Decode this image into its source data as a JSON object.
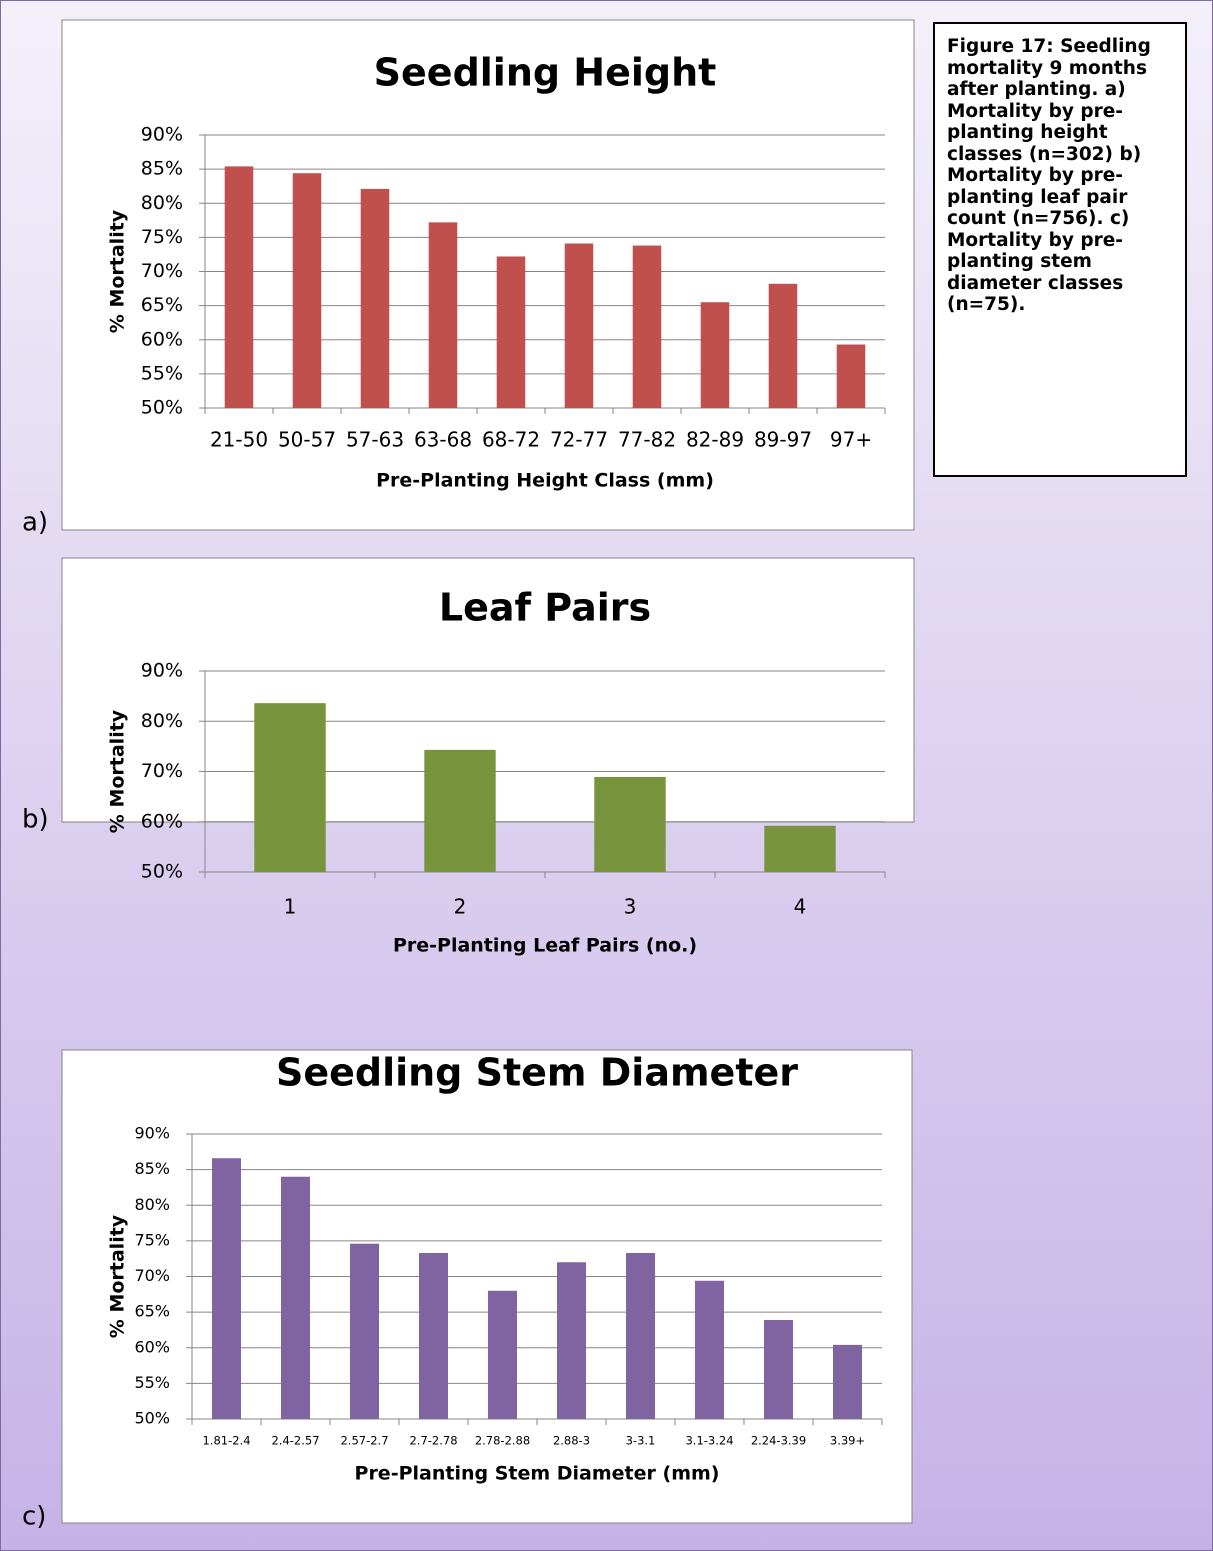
{
  "caption": "Figure 17: Seedling mortality 9 months after planting. a) Mortality by pre-planting height classes (n=302) b) Mortality by pre-planting leaf pair count (n=756). c) Mortality by pre-planting stem diameter classes (n=75).",
  "chart_data": [
    {
      "type": "bar",
      "panel": "a)",
      "title": "Seedling Height",
      "x_label": "Pre-Planting Height Class (mm)",
      "y_label": "% Mortality",
      "categories": [
        "21-50",
        "50-57",
        "57-63",
        "63-68",
        "68-72",
        "72-77",
        "77-82",
        "82-89",
        "89-97",
        "97+"
      ],
      "values": [
        85.4,
        84.4,
        82.1,
        77.2,
        72.2,
        74.1,
        73.8,
        65.5,
        68.2,
        59.3
      ],
      "color": "#c0504d",
      "ylim": [
        50,
        90
      ],
      "yticks": [
        {
          "value": 50,
          "label": "50%"
        },
        {
          "value": 55,
          "label": "55%"
        },
        {
          "value": 60,
          "label": "60%"
        },
        {
          "value": 65,
          "label": "65%"
        },
        {
          "value": 70,
          "label": "70%"
        },
        {
          "value": 75,
          "label": "75%"
        },
        {
          "value": 80,
          "label": "80%"
        },
        {
          "value": 85,
          "label": "85%"
        },
        {
          "value": 90,
          "label": "90%"
        }
      ],
      "grid": true
    },
    {
      "type": "bar",
      "panel": "b)",
      "title": "Leaf Pairs",
      "x_label": "Pre-Planting Leaf Pairs (no.)",
      "y_label": "% Mortality",
      "categories": [
        "1",
        "2",
        "3",
        "4"
      ],
      "values": [
        83.6,
        74.3,
        68.9,
        59.2
      ],
      "color": "#77933c",
      "ylim": [
        50,
        90
      ],
      "yticks": [
        {
          "value": 50,
          "label": "50%"
        },
        {
          "value": 60,
          "label": "60%"
        },
        {
          "value": 70,
          "label": "70%"
        },
        {
          "value": 80,
          "label": "80%"
        },
        {
          "value": 90,
          "label": "90%"
        }
      ],
      "grid": true
    },
    {
      "type": "bar",
      "panel": "c)",
      "title": "Seedling Stem Diameter",
      "x_label": "Pre-Planting Stem Diameter (mm)",
      "y_label": "% Mortality",
      "categories": [
        "1.81-2.4",
        "2.4-2.57",
        "2.57-2.7",
        "2.7-2.78",
        "2.78-2.88",
        "2.88-3",
        "3-3.1",
        "3.1-3.24",
        "2.24-3.39",
        "3.39+"
      ],
      "values": [
        86.6,
        84.0,
        74.6,
        73.3,
        68.0,
        72.0,
        73.3,
        69.4,
        63.9,
        60.4
      ],
      "color": "#8064a2",
      "ylim": [
        50,
        90
      ],
      "yticks": [
        {
          "value": 50,
          "label": "50%"
        },
        {
          "value": 55,
          "label": "55%"
        },
        {
          "value": 60,
          "label": "60%"
        },
        {
          "value": 65,
          "label": "65%"
        },
        {
          "value": 70,
          "label": "70%"
        },
        {
          "value": 75,
          "label": "75%"
        },
        {
          "value": 80,
          "label": "80%"
        },
        {
          "value": 85,
          "label": "85%"
        },
        {
          "value": 90,
          "label": "90%"
        }
      ],
      "grid": true
    }
  ]
}
